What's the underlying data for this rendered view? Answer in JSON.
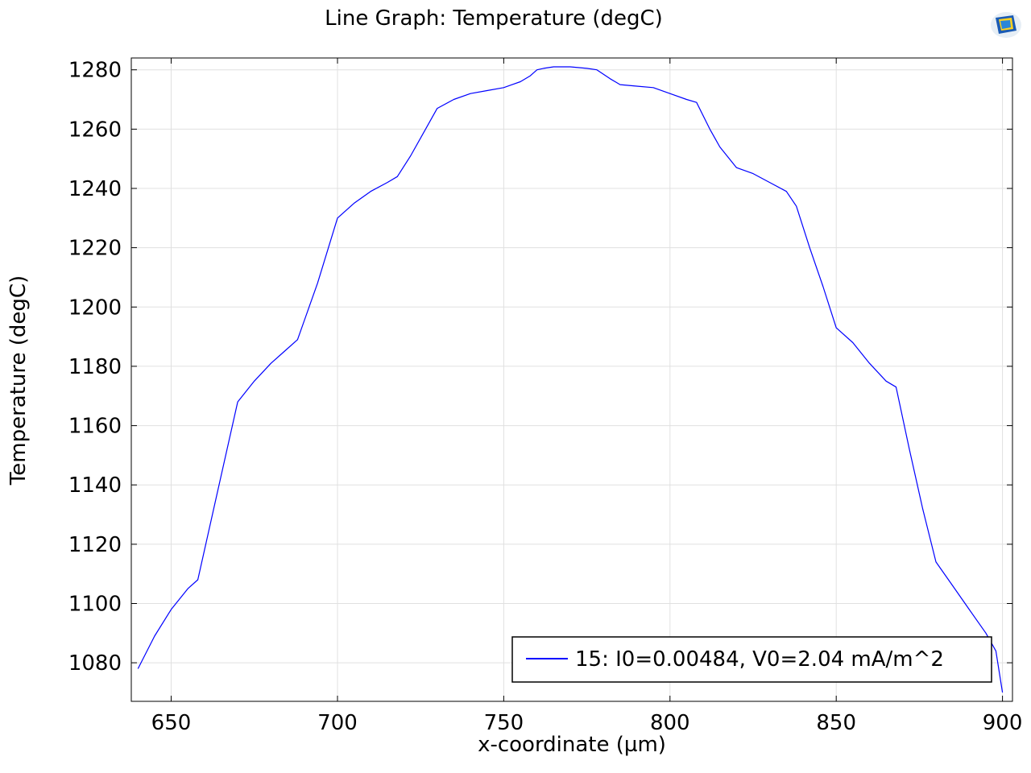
{
  "chart_data": {
    "type": "line",
    "title": "Line Graph: Temperature (degC)",
    "xlabel": "x-coordinate (µm)",
    "ylabel": "Temperature (degC)",
    "xlim": [
      638,
      903
    ],
    "ylim": [
      1067,
      1284
    ],
    "xticks": [
      650,
      700,
      750,
      800,
      850,
      900
    ],
    "yticks": [
      1080,
      1100,
      1120,
      1140,
      1160,
      1180,
      1200,
      1220,
      1240,
      1260,
      1280
    ],
    "grid": true,
    "legend_position": "bottom-right",
    "series": [
      {
        "name": "15: I0=0.00484, V0=2.04 mA/m^2",
        "color": "#0000ff",
        "x": [
          640,
          645,
          650,
          655,
          658,
          664,
          670,
          675,
          680,
          684,
          688,
          694,
          700,
          705,
          710,
          715,
          718,
          722,
          726,
          730,
          735,
          740,
          745,
          750,
          755,
          758,
          760,
          762,
          765,
          770,
          775,
          778,
          782,
          785,
          790,
          795,
          800,
          805,
          808,
          812,
          815,
          820,
          825,
          830,
          835,
          838,
          842,
          846,
          850,
          855,
          860,
          865,
          868,
          872,
          876,
          880,
          885,
          890,
          895,
          898,
          900
        ],
        "y": [
          1078,
          1089,
          1098,
          1105,
          1108,
          1138,
          1168,
          1175,
          1181,
          1185,
          1189,
          1208,
          1230,
          1235,
          1239,
          1242,
          1244,
          1251,
          1259,
          1267,
          1270,
          1272,
          1273,
          1274,
          1276,
          1278,
          1280,
          1280.5,
          1281,
          1281,
          1280.5,
          1280,
          1277,
          1275,
          1274.5,
          1274,
          1272,
          1270,
          1269,
          1260,
          1254,
          1247,
          1245,
          1242,
          1239,
          1234,
          1220,
          1207,
          1193,
          1188,
          1181,
          1175,
          1173,
          1152,
          1132,
          1114,
          1106,
          1098,
          1090,
          1084,
          1070
        ]
      }
    ]
  }
}
